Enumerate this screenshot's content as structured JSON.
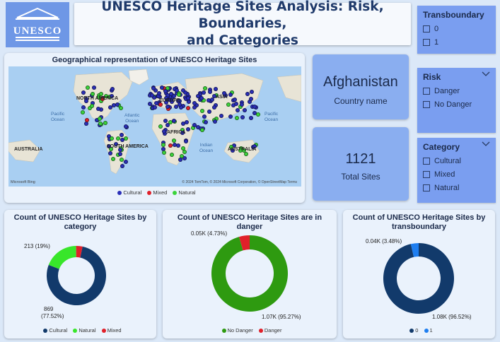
{
  "logo": {
    "text": "UNESCO"
  },
  "title": {
    "line1": "UNESCO Heritage Sites Analysis: Risk, Boundaries,",
    "line2": "and Categories"
  },
  "slicers": {
    "transboundary": {
      "title": "Transboundary",
      "items": [
        "0",
        "1"
      ]
    },
    "risk": {
      "title": "Risk",
      "items": [
        "Danger",
        "No Danger"
      ]
    },
    "category": {
      "title": "Category",
      "items": [
        "Cultural",
        "Mixed",
        "Natural"
      ]
    }
  },
  "map": {
    "title": "Geographical representation of UNESCO Heritage Sites",
    "labels": {
      "north_america": "NORTH AMERICA",
      "south_america": "SOUTH AMERICA",
      "europe": "EUROPE",
      "asia": "ASIA",
      "africa": "AFRICA",
      "australia_left": "AUSTRALIA",
      "australia_right": "AUSTRALIA",
      "pacific_left": "Pacific\nOcean",
      "atlantic": "Atlantic\nOcean",
      "indian": "Indian\nOcean",
      "pacific_right": "Pacific\nOcean"
    },
    "copyright": "© 2024 TomTom, © 2024 Microsoft Corporation, © OpenStreetMap  Terms",
    "bing": "Microsoft Bing",
    "legend": [
      "Cultural",
      "Mixed",
      "Natural"
    ],
    "colors": {
      "Cultural": "#2a2fb8",
      "Mixed": "#e0202a",
      "Natural": "#3bd43b"
    }
  },
  "kpi": {
    "country": {
      "value": "Afghanistan",
      "label": "Country name"
    },
    "total": {
      "value": "1121",
      "label": "Total Sites"
    }
  },
  "donut_category": {
    "title": "Count of UNESCO Heritage Sites by category",
    "label_natural": "213 (19%)",
    "label_cultural_1": "869",
    "label_cultural_2": "(77.52%)",
    "legend": [
      "Cultural",
      "Natural",
      "Mixed"
    ],
    "colors": {
      "Cultural": "#123a6b",
      "Natural": "#38e62a",
      "Mixed": "#e0202a"
    }
  },
  "donut_danger": {
    "title": "Count of UNESCO Heritage Sites are in danger",
    "label_danger": "0.05K (4.73%)",
    "label_nodanger": "1.07K (95.27%)",
    "legend": [
      "No Danger",
      "Danger"
    ],
    "colors": {
      "No Danger": "#2e9a10",
      "Danger": "#e0202a"
    }
  },
  "donut_trans": {
    "title": "Count of UNESCO Heritage Sites by transboundary",
    "label_1": "0.04K (3.48%)",
    "label_0": "1.08K (96.52%)",
    "legend": [
      "0",
      "1"
    ],
    "colors": {
      "0": "#123a6b",
      "1": "#1e7ef0"
    }
  },
  "chart_data": [
    {
      "type": "pie",
      "title": "Count of UNESCO Heritage Sites by category",
      "categories": [
        "Cultural",
        "Natural",
        "Mixed"
      ],
      "values": [
        869,
        213,
        39
      ],
      "percent": [
        77.52,
        19,
        3.48
      ]
    },
    {
      "type": "pie",
      "title": "Count of UNESCO Heritage Sites are in danger",
      "categories": [
        "No Danger",
        "Danger"
      ],
      "values": [
        1070,
        50
      ],
      "percent": [
        95.27,
        4.73
      ]
    },
    {
      "type": "pie",
      "title": "Count of UNESCO Heritage Sites by transboundary",
      "categories": [
        "0",
        "1"
      ],
      "values": [
        1080,
        40
      ],
      "percent": [
        96.52,
        3.48
      ]
    }
  ]
}
